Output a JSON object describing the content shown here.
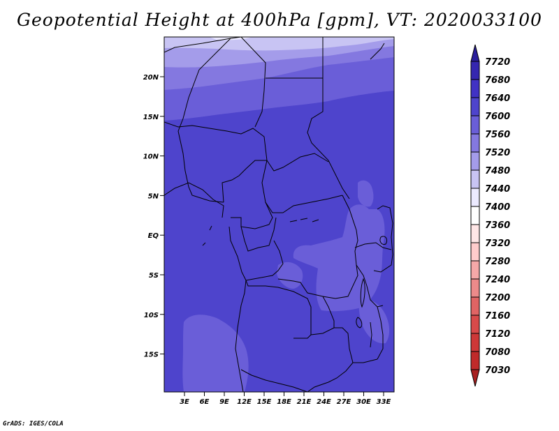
{
  "title": "Geopotential Height at 400hPa [gpm], VT: 2020033100",
  "credit": "GrADS: IGES/COLA",
  "map": {
    "lat_labels": [
      "20N",
      "15N",
      "10N",
      "5N",
      "EQ",
      "5S",
      "10S",
      "15S"
    ],
    "lon_labels": [
      "3E",
      "6E",
      "9E",
      "12E",
      "15E",
      "18E",
      "21E",
      "24E",
      "27E",
      "30E",
      "33E"
    ],
    "fill_colors": {
      "7720": "#2a1e9c",
      "7680": "#3527b0",
      "7640": "#4132c4",
      "7600": "#4e44cc",
      "7560": "#6a5ed8",
      "7520": "#8478e0",
      "7480": "#a49cea",
      "7440": "#c8c4f3",
      "7400": "#eceaff"
    }
  },
  "colorbar": {
    "levels": [
      "7720",
      "7680",
      "7640",
      "7600",
      "7560",
      "7520",
      "7480",
      "7440",
      "7400",
      "7360",
      "7320",
      "7280",
      "7240",
      "7200",
      "7160",
      "7120",
      "7080",
      "7030"
    ],
    "colors": [
      "#2a1e9c",
      "#3527b0",
      "#4132c4",
      "#4e44cc",
      "#6a5ed8",
      "#8478e0",
      "#a49cea",
      "#c8c4f3",
      "#eceaff",
      "#ffffff",
      "#ffe6e6",
      "#ffcccc",
      "#f5a8a8",
      "#ec8a8a",
      "#e06464",
      "#d84a4a",
      "#cd3838",
      "#c02a2a",
      "#a82020"
    ]
  }
}
